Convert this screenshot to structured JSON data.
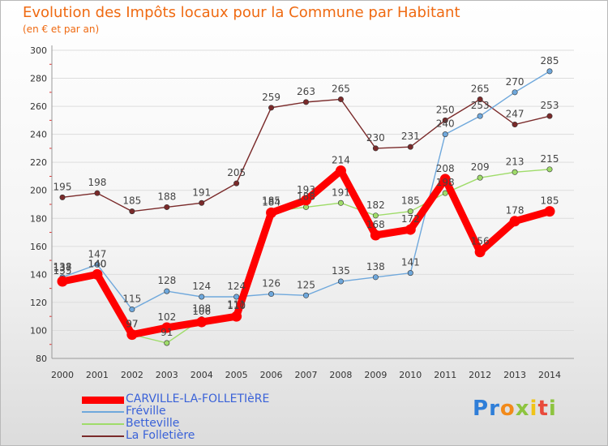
{
  "title": "Evolution des Impôts locaux pour la Commune par Habitant",
  "subtitle": "(en € et par an)",
  "logo": {
    "letters": [
      "P",
      "r",
      "o",
      "x",
      "i",
      "t",
      "i"
    ],
    "colors": [
      "#2f7ed8",
      "#2f7ed8",
      "#f28a1a",
      "#8dc43f",
      "#f0c419",
      "#e94a3c",
      "#8dc43f"
    ]
  },
  "chart_data": {
    "type": "line",
    "title": "Evolution des Impôts locaux pour la Commune par Habitant",
    "subtitle": "(en € et par an)",
    "x": [
      2000,
      2001,
      2002,
      2003,
      2004,
      2005,
      2006,
      2007,
      2008,
      2009,
      2010,
      2011,
      2012,
      2013,
      2014
    ],
    "ylim": [
      80,
      300
    ],
    "yticks": [
      80,
      100,
      120,
      140,
      160,
      180,
      200,
      220,
      240,
      260,
      280,
      300
    ],
    "grid": true,
    "legend_position": "bottom-left",
    "series": [
      {
        "name": "CARVILLE-LA-FOLLETIèRE",
        "color": "#ff0000",
        "values": [
          135,
          140,
          97,
          102,
          106,
          110,
          184,
          193,
          214,
          168,
          172,
          208,
          156,
          178,
          185
        ]
      },
      {
        "name": "Fréville",
        "color": "#6fa8dc",
        "values": [
          138,
          147,
          115,
          128,
          124,
          124,
          126,
          125,
          135,
          138,
          141,
          240,
          253,
          270,
          285
        ]
      },
      {
        "name": "Betteville",
        "color": "#9fdc6a",
        "values": [
          137,
          140,
          97,
          91,
          108,
          111,
          185,
          188,
          191,
          182,
          185,
          198,
          209,
          213,
          215
        ]
      },
      {
        "name": "La Folletière",
        "color": "#7a2a2a",
        "values": [
          195,
          198,
          185,
          188,
          191,
          205,
          259,
          263,
          265,
          230,
          231,
          250,
          265,
          247,
          253
        ]
      }
    ]
  }
}
